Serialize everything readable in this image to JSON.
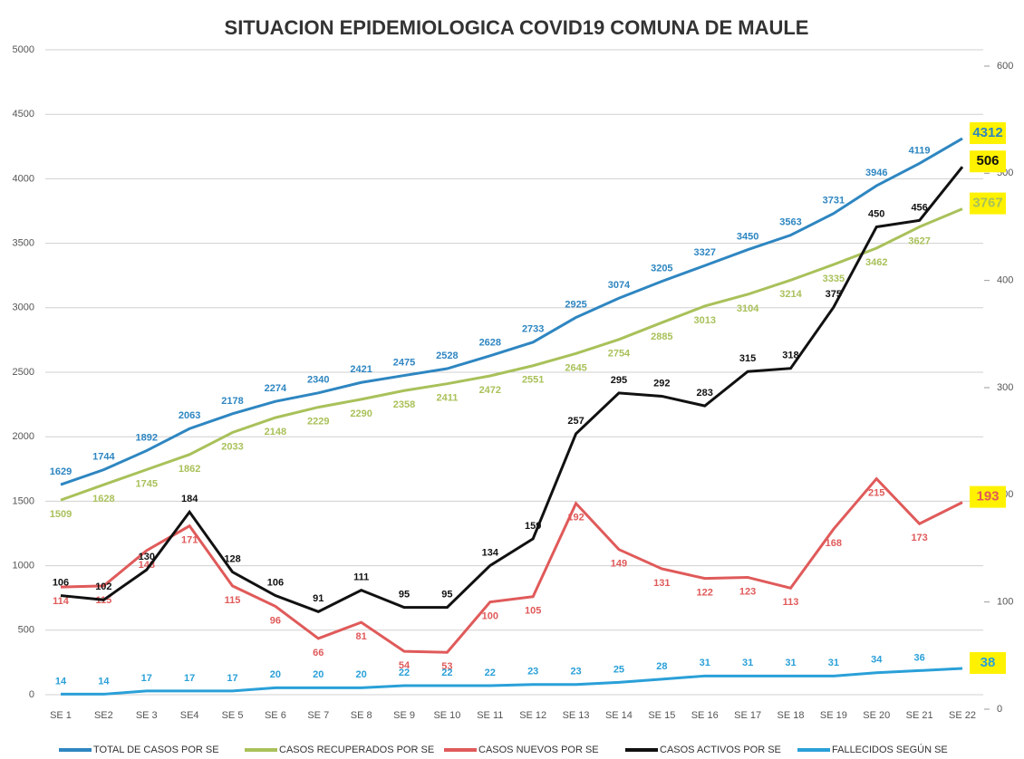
{
  "chart_data": {
    "type": "line",
    "title": "SITUACION EPIDEMIOLOGICA COVID19 COMUNA DE MAULE",
    "categories": [
      "SE 1",
      "SE2",
      "SE 3",
      "SE4",
      "SE 5",
      "SE 6",
      "SE 7",
      "SE 8",
      "SE 9",
      "SE 10",
      "SE 11",
      "SE 12",
      "SE 13",
      "SE 14",
      "SE 15",
      "SE 16",
      "SE 17",
      "SE 18",
      "SE 19",
      "SE 20",
      "SE 21",
      "SE 22"
    ],
    "series": [
      {
        "name": "TOTAL DE CASOS POR SE",
        "color": "#2e86c1",
        "values": [
          1629,
          1744,
          1892,
          2063,
          2178,
          2274,
          2340,
          2421,
          2475,
          2528,
          2628,
          2733,
          2925,
          3074,
          3205,
          3327,
          3450,
          3563,
          3731,
          3946,
          4119,
          4312
        ]
      },
      {
        "name": "CASOS RECUPERADOS POR SE",
        "color": "#a9c15a",
        "values": [
          1509,
          1628,
          1745,
          1862,
          2033,
          2148,
          2229,
          2290,
          2358,
          2411,
          2472,
          2551,
          2645,
          2754,
          2885,
          3013,
          3104,
          3214,
          3335,
          3462,
          3627,
          3767
        ]
      },
      {
        "name": "CASOS NUEVOS POR SE",
        "color": "#e05a5a",
        "axis": "y2",
        "values": [
          114,
          115,
          148,
          171,
          115,
          96,
          66,
          81,
          54,
          53,
          100,
          105,
          192,
          149,
          131,
          122,
          123,
          113,
          168,
          215,
          173,
          193
        ]
      },
      {
        "name": "CASOS ACTIVOS POR SE",
        "color": "#111111",
        "axis": "y2",
        "values": [
          106,
          102,
          130,
          184,
          128,
          106,
          91,
          111,
          95,
          95,
          134,
          159,
          257,
          295,
          292,
          283,
          315,
          318,
          375,
          450,
          456,
          506
        ]
      },
      {
        "name": "FALLECIDOS SEGÚN SE",
        "color": "#2aa0d8",
        "axis": "y2",
        "values": [
          14,
          14,
          17,
          17,
          17,
          20,
          20,
          20,
          22,
          22,
          22,
          23,
          23,
          25,
          28,
          31,
          31,
          31,
          31,
          34,
          36,
          38
        ]
      }
    ],
    "ylim": [
      0,
      5000
    ],
    "yticks": [
      0,
      500,
      1000,
      1500,
      2000,
      2500,
      3000,
      3500,
      4000,
      4500,
      5000
    ],
    "y2lim": [
      0,
      600
    ],
    "y2ticks": [
      0,
      100,
      200,
      300,
      400,
      500,
      600
    ],
    "grid": true
  }
}
